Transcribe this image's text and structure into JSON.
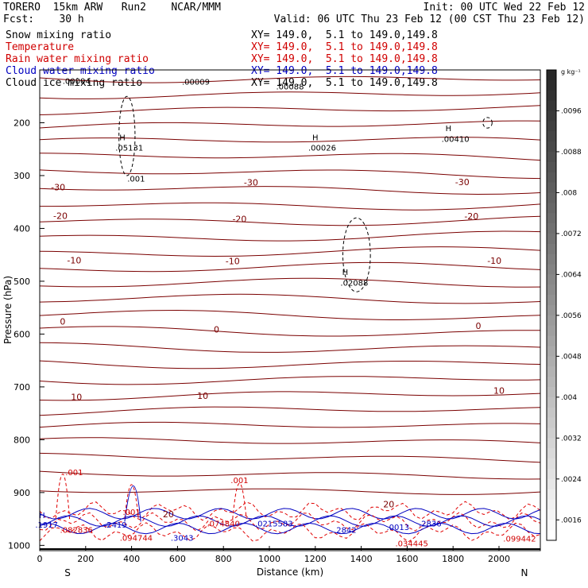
{
  "header": {
    "model": "TORERO  15km ARW   Run2    NCAR/MMM",
    "init": "Init: 00 UTC Wed 22 Feb 12",
    "fcst": "Fcst:    30 h",
    "valid": "Valid: 06 UTC Thu 23 Feb 12 (00 CST Thu 23 Feb 12)"
  },
  "fields": [
    {
      "name": "Snow mixing ratio",
      "xy": "XY= 149.0,  5.1 to 149.0,149.8",
      "color": "#000000"
    },
    {
      "name": "Temperature",
      "xy": "XY= 149.0,  5.1 to 149.0,149.8",
      "color": "#d00000"
    },
    {
      "name": "Rain water mixing ratio",
      "xy": "XY= 149.0,  5.1 to 149.0,149.8",
      "color": "#d00000"
    },
    {
      "name": "Cloud water mixing ratio",
      "xy": "XY= 149.0,  5.1 to 149.0,149.8",
      "color": "#0000c0"
    },
    {
      "name": "Cloud ice mixing ratio",
      "xy": "XY= 149.0,  5.1 to 149.0,149.8",
      "color": "#000000"
    }
  ],
  "chart_data": {
    "type": "cross-section contour",
    "xlabel": "Distance (km)",
    "ylabel": "Pressure (hPa)",
    "xlim": [
      0,
      2180
    ],
    "ylim": [
      1010,
      100
    ],
    "x_ticks": [
      0,
      200,
      400,
      600,
      800,
      1000,
      1200,
      1400,
      1600,
      1800,
      2000
    ],
    "y_ticks": [
      200,
      300,
      400,
      500,
      600,
      700,
      800,
      900,
      1000
    ],
    "direction_left": "S",
    "direction_right": "N",
    "colorbar": {
      "unit": "g kg⁻¹",
      "tick_labels": [
        ".0096",
        ".0088",
        ".008",
        ".0072",
        ".0064",
        ".0056",
        ".0048",
        ".004",
        ".0032",
        ".0024",
        ".0016"
      ],
      "range": [
        0.0012,
        0.0104
      ]
    },
    "temperature_labels": [
      {
        "text": "-30",
        "x": 80,
        "p": 322
      },
      {
        "text": "-30",
        "x": 920,
        "p": 313
      },
      {
        "text": "-30",
        "x": 1840,
        "p": 312
      },
      {
        "text": "-20",
        "x": 90,
        "p": 376
      },
      {
        "text": "-20",
        "x": 870,
        "p": 382
      },
      {
        "text": "-20",
        "x": 1880,
        "p": 377
      },
      {
        "text": "-10",
        "x": 150,
        "p": 460
      },
      {
        "text": "-10",
        "x": 840,
        "p": 462
      },
      {
        "text": "-10",
        "x": 1980,
        "p": 461
      },
      {
        "text": "0",
        "x": 100,
        "p": 576
      },
      {
        "text": "0",
        "x": 770,
        "p": 591
      },
      {
        "text": "0",
        "x": 1910,
        "p": 584
      },
      {
        "text": "10",
        "x": 160,
        "p": 719
      },
      {
        "text": "10",
        "x": 710,
        "p": 717
      },
      {
        "text": "10",
        "x": 2000,
        "p": 707
      },
      {
        "text": "20",
        "x": 560,
        "p": 941
      },
      {
        "text": "20",
        "x": 1520,
        "p": 922
      }
    ],
    "maxima_labels": [
      {
        "text": ".00004",
        "x": 160,
        "p": 120,
        "color": "#000000"
      },
      {
        "text": ".00009",
        "x": 680,
        "p": 122,
        "color": "#000000"
      },
      {
        "text": ".00088",
        "x": 1090,
        "p": 131,
        "color": "#000000"
      },
      {
        "text": "H",
        "x": 360,
        "p": 227,
        "color": "#000000"
      },
      {
        "text": ".05131",
        "x": 390,
        "p": 247,
        "color": "#000000"
      },
      {
        "text": ".001",
        "x": 420,
        "p": 305,
        "color": "#000000"
      },
      {
        "text": "H",
        "x": 1200,
        "p": 227,
        "color": "#000000"
      },
      {
        "text": ".00026",
        "x": 1230,
        "p": 247,
        "color": "#000000"
      },
      {
        "text": "H",
        "x": 1780,
        "p": 210,
        "color": "#000000"
      },
      {
        "text": ".00410",
        "x": 1810,
        "p": 230,
        "color": "#000000"
      },
      {
        "text": "H",
        "x": 1330,
        "p": 482,
        "color": "#000000"
      },
      {
        "text": ".02088",
        "x": 1370,
        "p": 502,
        "color": "#000000"
      },
      {
        "text": ".001",
        "x": 150,
        "p": 861,
        "color": "#d00000"
      },
      {
        "text": ".001",
        "x": 400,
        "p": 936,
        "color": "#d00000"
      },
      {
        "text": ".001",
        "x": 870,
        "p": 876,
        "color": "#d00000"
      },
      {
        "text": "H",
        "x": 10,
        "p": 942,
        "color": "#0000c0"
      },
      {
        "text": ".1917",
        "x": 30,
        "p": 960,
        "color": "#0000c0"
      },
      {
        "text": ".082836",
        "x": 160,
        "p": 970,
        "color": "#d00000"
      },
      {
        "text": ".2419",
        "x": 330,
        "p": 960,
        "color": "#0000c0"
      },
      {
        "text": ".094744",
        "x": 420,
        "p": 985,
        "color": "#d00000"
      },
      {
        "text": ".3043",
        "x": 620,
        "p": 985,
        "color": "#0000c0"
      },
      {
        "text": ".074840",
        "x": 800,
        "p": 958,
        "color": "#d00000"
      },
      {
        "text": ".0215583",
        "x": 1020,
        "p": 958,
        "color": "#0000c0"
      },
      {
        "text": ".2842",
        "x": 1330,
        "p": 970,
        "color": "#0000c0"
      },
      {
        "text": ".0013",
        "x": 1560,
        "p": 965,
        "color": "#0000c0"
      },
      {
        "text": ".2836",
        "x": 1700,
        "p": 958,
        "color": "#0000c0"
      },
      {
        "text": ".034445",
        "x": 1620,
        "p": 996,
        "color": "#d00000"
      },
      {
        "text": ".099442",
        "x": 2090,
        "p": 987,
        "color": "#d00000"
      }
    ]
  }
}
